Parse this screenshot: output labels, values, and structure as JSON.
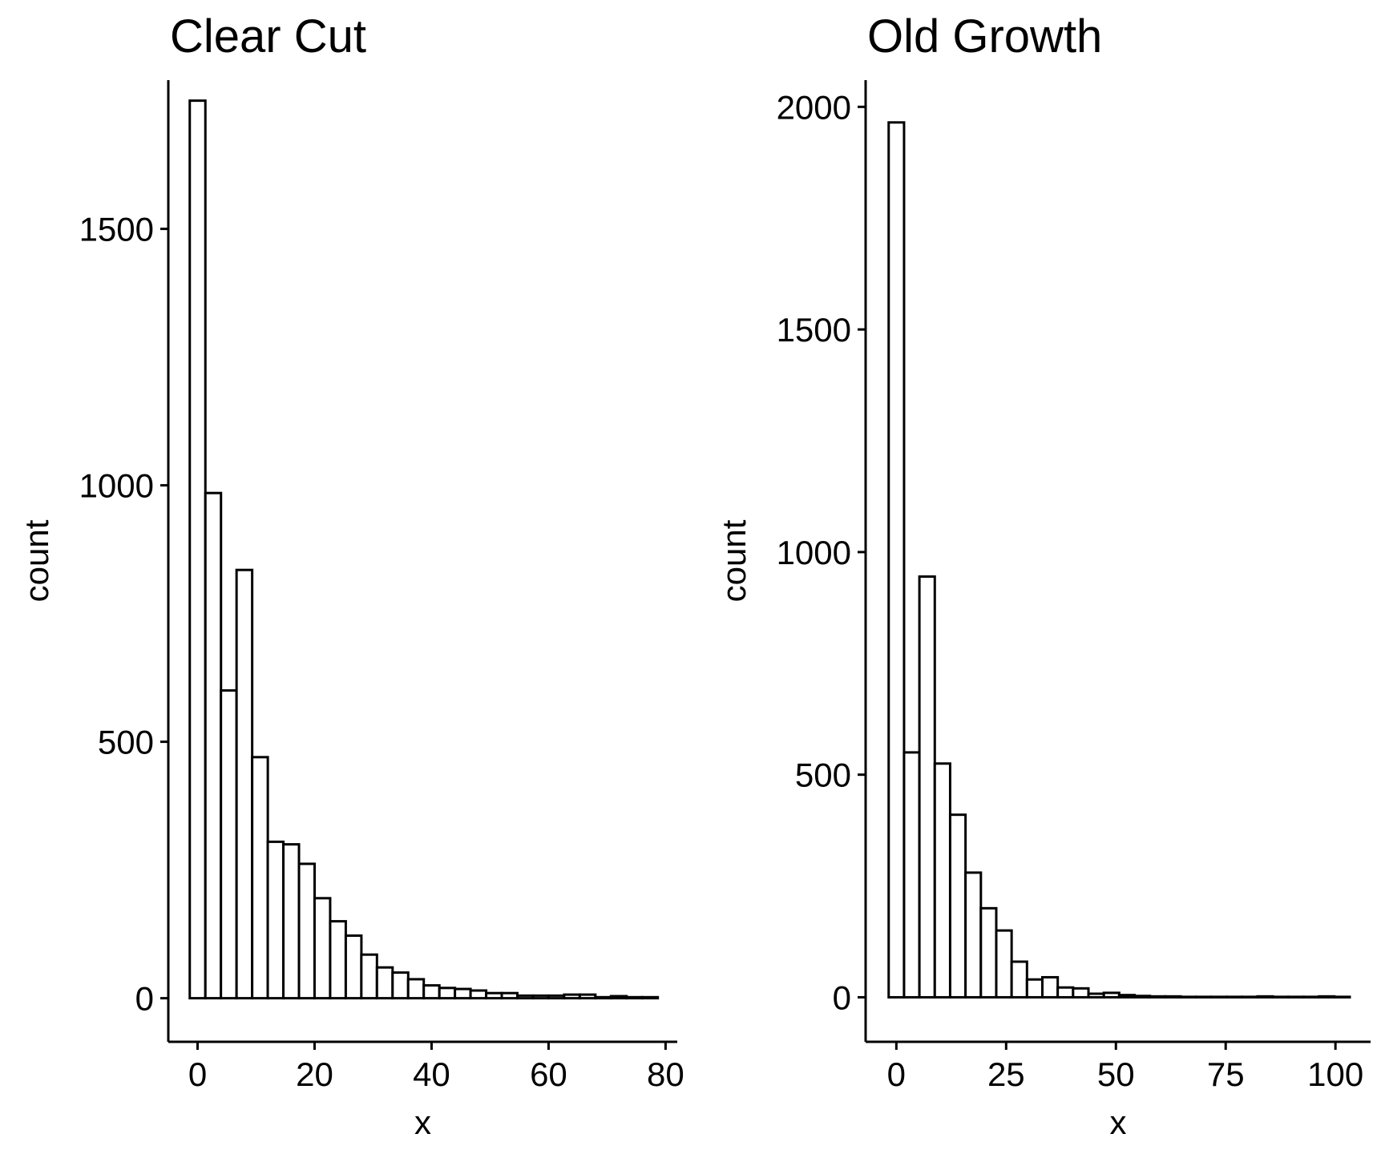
{
  "chart_data": [
    {
      "type": "bar",
      "title": "Clear Cut",
      "xlabel": "x",
      "ylabel": "count",
      "xlim": [
        -5,
        82
      ],
      "ylim": [
        -85,
        1790
      ],
      "xticks": [
        0,
        20,
        40,
        60,
        80
      ],
      "yticks": [
        0,
        500,
        1000,
        1500
      ],
      "bin_width": 2.67,
      "bin_centers": [
        0,
        2.67,
        5.33,
        8,
        10.67,
        13.33,
        16,
        18.67,
        21.33,
        24,
        26.67,
        29.33,
        32,
        34.67,
        37.33,
        40,
        42.67,
        45.33,
        48,
        50.67,
        53.33,
        56,
        58.67,
        61.33,
        64,
        66.67,
        69.33,
        72,
        74.67,
        77.33
      ],
      "values": [
        1750,
        985,
        600,
        835,
        470,
        305,
        300,
        262,
        195,
        150,
        122,
        85,
        60,
        50,
        37,
        25,
        20,
        18,
        15,
        10,
        10,
        5,
        5,
        5,
        7,
        7,
        2,
        4,
        2,
        2
      ],
      "grid": false
    },
    {
      "type": "bar",
      "title": "Old Growth",
      "xlabel": "x",
      "ylabel": "count",
      "xlim": [
        -7,
        108
      ],
      "ylim": [
        -100,
        2060
      ],
      "xticks": [
        0,
        25,
        50,
        75,
        100
      ],
      "yticks": [
        0,
        500,
        1000,
        1500,
        2000
      ],
      "bin_width": 3.5,
      "bin_centers": [
        0,
        3.5,
        7,
        10.5,
        14,
        17.5,
        21,
        24.5,
        28,
        31.5,
        35,
        38.5,
        42,
        45.5,
        49,
        52.5,
        56,
        59.5,
        63,
        66.5,
        70,
        73.5,
        77,
        80.5,
        84,
        87.5,
        91,
        94.5,
        98,
        101.5
      ],
      "values": [
        1965,
        550,
        945,
        525,
        410,
        280,
        200,
        150,
        80,
        40,
        45,
        22,
        20,
        8,
        10,
        5,
        3,
        2,
        2,
        1,
        1,
        1,
        1,
        1,
        2,
        1,
        1,
        1,
        2,
        1
      ],
      "grid": false
    }
  ]
}
